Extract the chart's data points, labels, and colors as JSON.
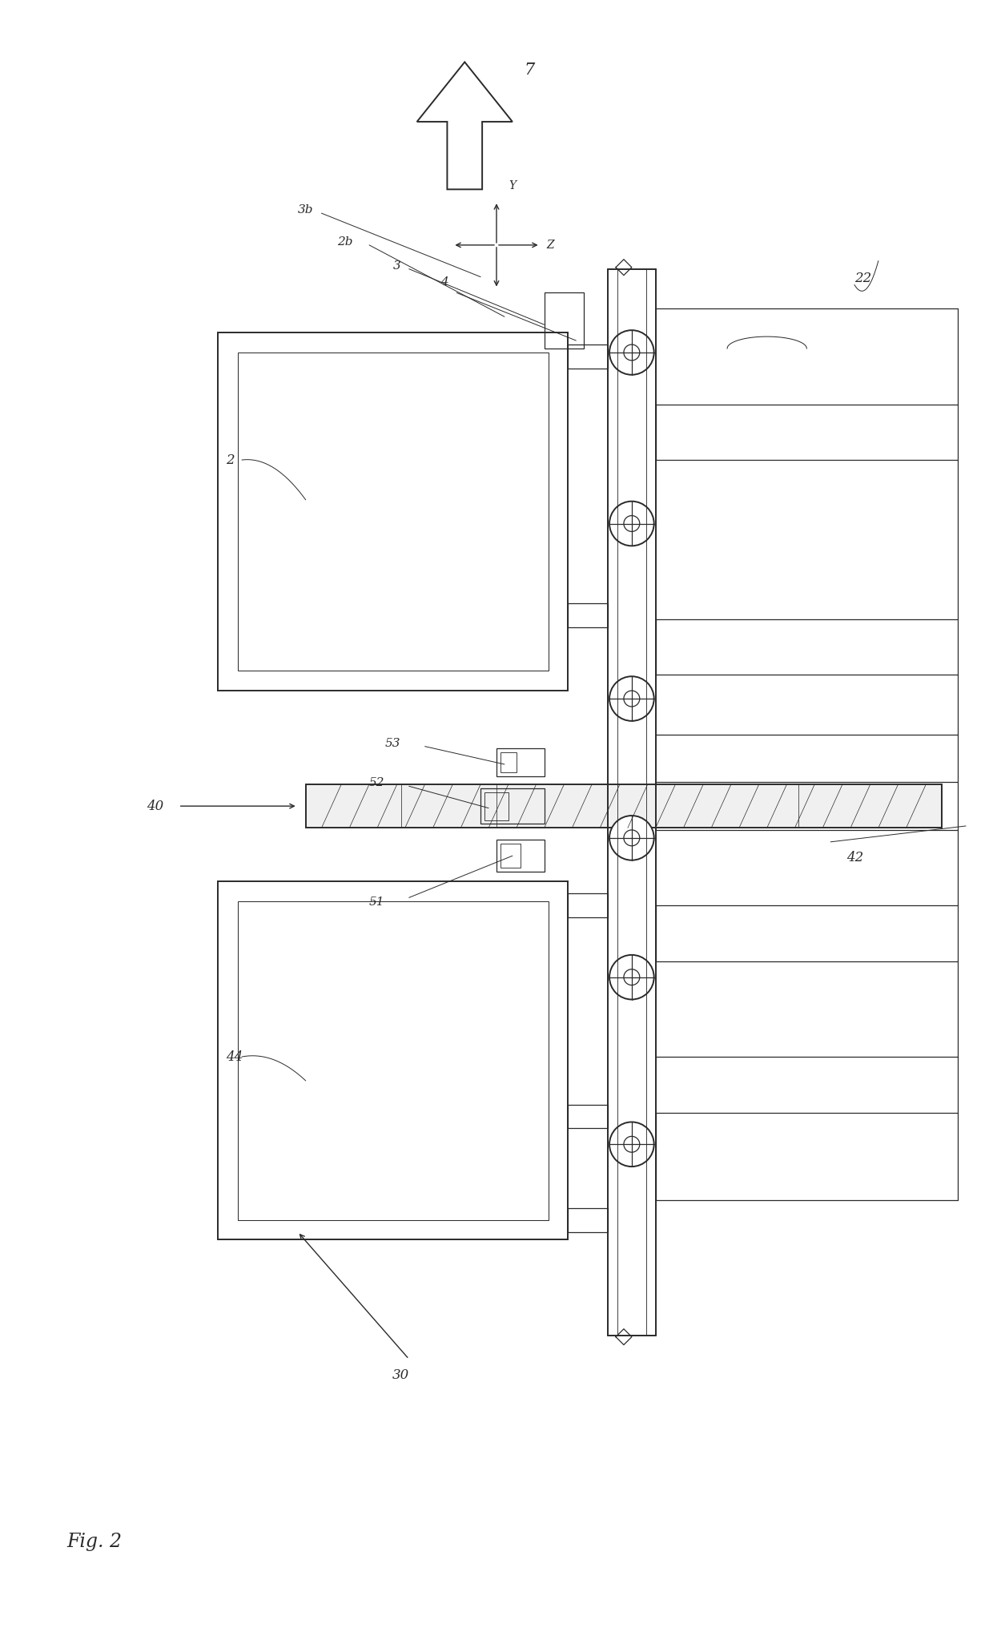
{
  "bg_color": "#ffffff",
  "line_color": "#2a2a2a",
  "fig_width": 12.4,
  "fig_height": 20.52,
  "labels": {
    "fig_label": "Fig. 2",
    "num_7": "7",
    "num_22": "22",
    "num_3b": "3b",
    "num_2b": "2b",
    "num_3": "3",
    "num_4": "4",
    "num_2": "2",
    "num_53": "53",
    "num_52": "52",
    "num_40": "40",
    "num_42": "42",
    "num_51": "51",
    "num_44": "44",
    "num_30": "30",
    "axis_Y": "Y",
    "axis_Z": "Z"
  }
}
